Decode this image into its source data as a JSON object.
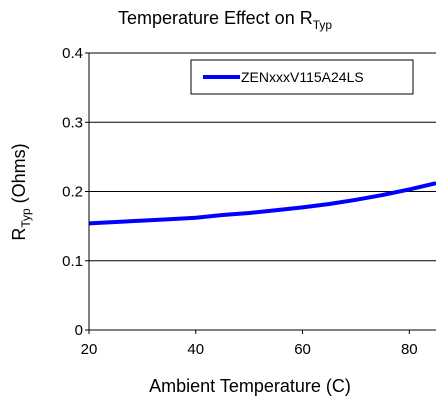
{
  "chart_data": {
    "type": "line",
    "title": {
      "main": "Temperature Effect on R",
      "sub": "Typ"
    },
    "xlabel": "Ambient Temperature (C)",
    "ylabel": {
      "main": "R",
      "sub": "Typ",
      "rest": " (Ohms)"
    },
    "xlim": [
      20,
      85
    ],
    "ylim": [
      0,
      0.4
    ],
    "xticks": [
      20,
      40,
      60,
      80
    ],
    "xtick_labels": [
      "20",
      "40",
      "60",
      "80"
    ],
    "yticks": [
      0,
      0.1,
      0.2,
      0.3,
      0.4
    ],
    "ytick_labels": [
      "0",
      "0.1",
      "0.2",
      "0.3",
      "0.4"
    ],
    "grid": "horizontal",
    "legend_position": "top-right",
    "series": [
      {
        "name": "ZENxxxV115A24LS",
        "color": "#0000ff",
        "x": [
          20,
          25,
          30,
          35,
          40,
          45,
          50,
          55,
          60,
          65,
          70,
          75,
          80,
          85
        ],
        "y": [
          0.154,
          0.156,
          0.158,
          0.16,
          0.162,
          0.166,
          0.169,
          0.173,
          0.177,
          0.182,
          0.188,
          0.195,
          0.203,
          0.212
        ]
      }
    ]
  }
}
